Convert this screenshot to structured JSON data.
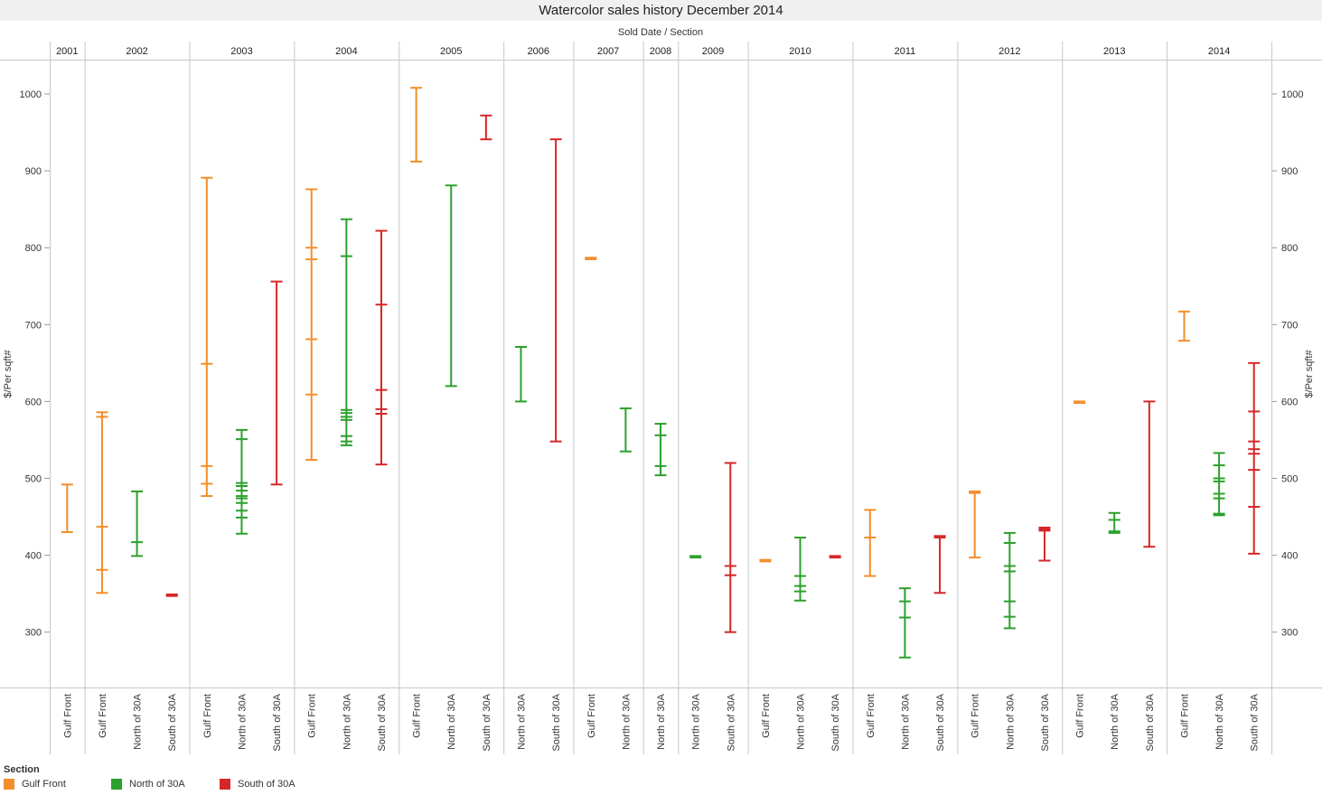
{
  "chart_data": {
    "type": "range-bar (box-style range per year and section)",
    "title": "Watercolor sales history December 2014",
    "header_label": "Sold Date  /  Section",
    "ylabel": "$/Per sqft#",
    "ylim": [
      235,
      1050
    ],
    "yticks": [
      300,
      400,
      500,
      600,
      700,
      800,
      900,
      1000
    ],
    "legend": {
      "title": "Section",
      "placement": "bottom-left",
      "items": [
        {
          "name": "Gulf Front",
          "color": "#f28e2b"
        },
        {
          "name": "North of 30A",
          "color": "#2ca02c"
        },
        {
          "name": "South of 30A",
          "color": "#d62728"
        }
      ]
    },
    "groups": [
      {
        "year": "2001",
        "columns": [
          {
            "section": "Gulf Front",
            "values": [
              430,
              492
            ]
          }
        ]
      },
      {
        "year": "2002",
        "columns": [
          {
            "section": "Gulf Front",
            "values": [
              351,
              381,
              437,
              580,
              586
            ]
          },
          {
            "section": "North of 30A",
            "values": [
              399,
              417,
              483
            ]
          },
          {
            "section": "South of 30A",
            "values": [
              347,
              349
            ]
          }
        ]
      },
      {
        "year": "2003",
        "columns": [
          {
            "section": "Gulf Front",
            "values": [
              477,
              493,
              516,
              649,
              891
            ]
          },
          {
            "section": "North of 30A",
            "values": [
              428,
              449,
              458,
              468,
              474,
              477,
              484,
              490,
              494,
              551,
              563
            ]
          },
          {
            "section": "South of 30A",
            "values": [
              492,
              756
            ]
          }
        ]
      },
      {
        "year": "2004",
        "columns": [
          {
            "section": "Gulf Front",
            "values": [
              524,
              609,
              681,
              785,
              800,
              876
            ]
          },
          {
            "section": "North of 30A",
            "values": [
              543,
              548,
              555,
              576,
              580,
              585,
              589,
              789,
              837
            ]
          },
          {
            "section": "South of 30A",
            "values": [
              518,
              584,
              590,
              615,
              726,
              822
            ]
          }
        ]
      },
      {
        "year": "2005",
        "columns": [
          {
            "section": "Gulf Front",
            "values": [
              912,
              1008
            ]
          },
          {
            "section": "North of 30A",
            "values": [
              620,
              881
            ]
          },
          {
            "section": "South of 30A",
            "values": [
              941,
              972
            ]
          }
        ]
      },
      {
        "year": "2006",
        "columns": [
          {
            "section": "North of 30A",
            "values": [
              600,
              671
            ]
          },
          {
            "section": "South of 30A",
            "values": [
              548,
              941
            ]
          }
        ]
      },
      {
        "year": "2007",
        "columns": [
          {
            "section": "Gulf Front",
            "values": [
              785,
              787
            ]
          },
          {
            "section": "North of 30A",
            "values": [
              535,
              591
            ]
          }
        ]
      },
      {
        "year": "2008",
        "columns": [
          {
            "section": "North of 30A",
            "values": [
              504,
              516,
              556,
              571
            ]
          }
        ]
      },
      {
        "year": "2009",
        "columns": [
          {
            "section": "North of 30A",
            "values": [
              397,
              399
            ]
          },
          {
            "section": "South of 30A",
            "values": [
              300,
              374,
              386,
              520
            ]
          }
        ]
      },
      {
        "year": "2010",
        "columns": [
          {
            "section": "Gulf Front",
            "values": [
              392,
              394
            ]
          },
          {
            "section": "North of 30A",
            "values": [
              341,
              353,
              360,
              373,
              423
            ]
          },
          {
            "section": "South of 30A",
            "values": [
              397,
              399
            ]
          }
        ]
      },
      {
        "year": "2011",
        "columns": [
          {
            "section": "Gulf Front",
            "values": [
              373,
              423,
              459
            ]
          },
          {
            "section": "North of 30A",
            "values": [
              267,
              319,
              340,
              357
            ]
          },
          {
            "section": "South of 30A",
            "values": [
              351,
              423,
              425
            ]
          }
        ]
      },
      {
        "year": "2012",
        "columns": [
          {
            "section": "Gulf Front",
            "values": [
              397,
              481,
              483
            ]
          },
          {
            "section": "North of 30A",
            "values": [
              305,
              320,
              340,
              379,
              386,
              416,
              429
            ]
          },
          {
            "section": "South of 30A",
            "values": [
              393,
              432,
              434,
              436
            ]
          }
        ]
      },
      {
        "year": "2013",
        "columns": [
          {
            "section": "Gulf Front",
            "values": [
              598,
              600
            ]
          },
          {
            "section": "North of 30A",
            "values": [
              429,
              431,
              446,
              455
            ]
          },
          {
            "section": "South of 30A",
            "values": [
              411,
              600
            ]
          }
        ]
      },
      {
        "year": "2014",
        "columns": [
          {
            "section": "Gulf Front",
            "values": [
              679,
              717
            ]
          },
          {
            "section": "North of 30A",
            "values": [
              452,
              454,
              474,
              480,
              496,
              500,
              517,
              533
            ]
          },
          {
            "section": "South of 30A",
            "values": [
              402,
              463,
              511,
              532,
              538,
              548,
              587,
              650
            ]
          }
        ]
      }
    ]
  }
}
